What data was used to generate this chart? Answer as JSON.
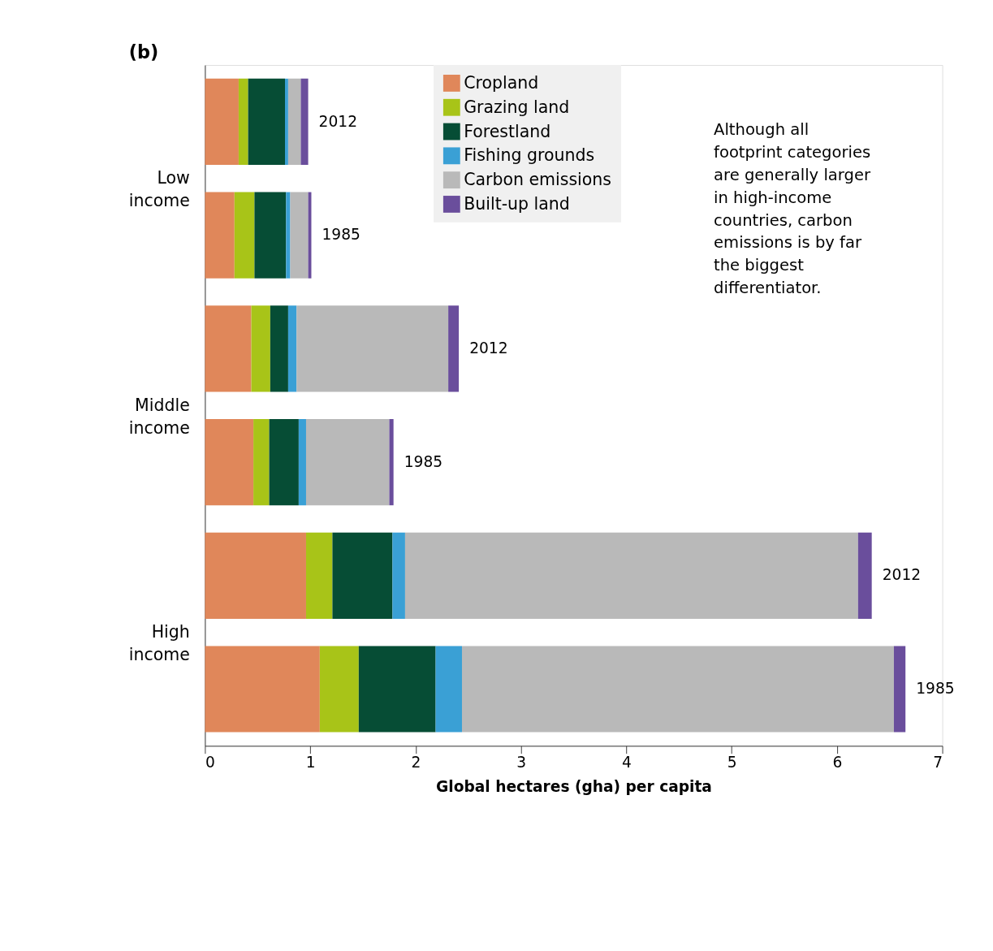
{
  "chart_data": {
    "type": "bar",
    "orientation": "horizontal",
    "stacked": true,
    "title": "(b)",
    "xlabel": "Global hectares (gha) per capita",
    "categories": [
      "2012",
      "1985",
      "2012",
      "1985",
      "2012",
      "1985"
    ],
    "series": [
      {
        "name": "Cropland",
        "color": "#e0875a",
        "values": [
          0.32,
          0.28,
          0.44,
          0.46,
          0.96,
          1.09
        ]
      },
      {
        "name": "Grazing land",
        "color": "#a8c418",
        "values": [
          0.09,
          0.19,
          0.18,
          0.15,
          0.25,
          0.37
        ]
      },
      {
        "name": "Forestland",
        "color": "#064d35",
        "values": [
          0.35,
          0.3,
          0.17,
          0.28,
          0.57,
          0.73
        ]
      },
      {
        "name": "Fishing grounds",
        "color": "#3aa0d5",
        "values": [
          0.03,
          0.04,
          0.08,
          0.07,
          0.12,
          0.25
        ]
      },
      {
        "name": "Carbon emissions",
        "color": "#b9b9b9",
        "values": [
          0.12,
          0.17,
          1.44,
          0.79,
          4.3,
          4.1
        ]
      },
      {
        "name": "Built-up land",
        "color": "#6a4e9c",
        "values": [
          0.07,
          0.03,
          0.1,
          0.04,
          0.13,
          0.11
        ]
      }
    ],
    "xlim": [
      0,
      7
    ],
    "xticks": [
      0,
      1,
      2,
      3,
      4,
      5,
      6,
      7
    ],
    "grid": false,
    "legend": "top",
    "tick_labels": "x",
    "annotations": [
      "Low income",
      "Middle income",
      "High income",
      "Although all footprint categories are generally larger in high-income countries, carbon emissions is by far the biggest differentiator."
    ]
  }
}
